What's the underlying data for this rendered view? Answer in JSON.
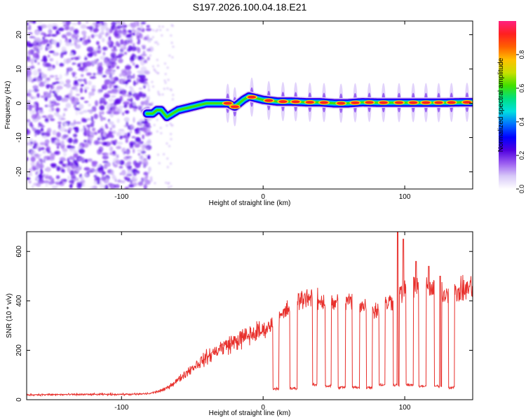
{
  "figure_title": "S197.2026.100.04.18.E21",
  "chart_data": [
    {
      "type": "heatmap",
      "id": "spectrogram",
      "xlabel": "Height of straight line (km)",
      "ylabel": "Frequency (Hz)",
      "xlim": [
        -167,
        148
      ],
      "ylim": [
        -25,
        24
      ],
      "xticks": [
        -100,
        0,
        100
      ],
      "yticks": [
        -20,
        -10,
        0,
        10,
        20
      ],
      "colorbar": {
        "label": "Normalized spectral amplitude",
        "range": [
          0.0,
          1.0
        ],
        "ticks": [
          "0.0",
          "0.2",
          "0.4",
          "0.6",
          "0.8"
        ],
        "colors": [
          "#ffffff",
          "#d8c8f8",
          "#9a5cf0",
          "#5000e0",
          "#0000ff",
          "#0070ff",
          "#00e0e0",
          "#00e080",
          "#40e000",
          "#c8e000",
          "#ffc000",
          "#ff6000",
          "#ff2020",
          "#ff2080"
        ]
      },
      "noise_region_end_km": -83,
      "ridge": {
        "x_km": [
          -82,
          -78,
          -75,
          -72,
          -68,
          -64,
          -60,
          -55,
          -50,
          -45,
          -40,
          -35,
          -30,
          -25,
          -20,
          -17,
          -14,
          -10,
          -5,
          0,
          10,
          20,
          30,
          40,
          50,
          60,
          70,
          80,
          90,
          100,
          110,
          120,
          130,
          140,
          148
        ],
        "freq_hz": [
          -3,
          -3,
          -2,
          -2,
          -4,
          -3,
          -2,
          -1.5,
          -1,
          -0.5,
          0,
          0,
          0,
          0,
          -1,
          0,
          1,
          2,
          1.5,
          1,
          0.5,
          0.5,
          0.3,
          0.3,
          0,
          0,
          0.3,
          0.2,
          0.2,
          0.2,
          0.2,
          0.2,
          0.2,
          0.3,
          0.3
        ],
        "peaks_km": [
          -25,
          -20,
          -8,
          4,
          14,
          23,
          33,
          43,
          55,
          65,
          75,
          85,
          96,
          106,
          115,
          124,
          133,
          144
        ]
      }
    },
    {
      "type": "line",
      "id": "snr",
      "xlabel": "Height of straight line (km)",
      "ylabel": "SNR (10 * v/v)",
      "xlim": [
        -167,
        148
      ],
      "ylim": [
        0,
        680
      ],
      "xticks": [
        -100,
        0,
        100
      ],
      "yticks": [
        0,
        200,
        400,
        600
      ],
      "color": "#e8302c",
      "trend": {
        "x_km": [
          -167,
          -90,
          -80,
          -70,
          -60,
          -50,
          -40,
          -30,
          -20,
          -10,
          0,
          10,
          20,
          30,
          40,
          50,
          60,
          70,
          80,
          90,
          100,
          110,
          120,
          130,
          140,
          148
        ],
        "snr": [
          20,
          22,
          25,
          40,
          80,
          130,
          170,
          210,
          235,
          260,
          280,
          320,
          380,
          420,
          400,
          390,
          400,
          380,
          360,
          400,
          440,
          460,
          440,
          430,
          440,
          460
        ]
      },
      "dips": [
        {
          "start_km": 7,
          "end_km": 11,
          "value": 45
        },
        {
          "start_km": 19,
          "end_km": 24,
          "value": 45
        },
        {
          "start_km": 35,
          "end_km": 38,
          "value": 60
        },
        {
          "start_km": 44,
          "end_km": 48,
          "value": 55
        },
        {
          "start_km": 53,
          "end_km": 58,
          "value": 50
        },
        {
          "start_km": 63,
          "end_km": 68,
          "value": 50
        },
        {
          "start_km": 73,
          "end_km": 77,
          "value": 50
        },
        {
          "start_km": 82,
          "end_km": 86,
          "value": 60
        },
        {
          "start_km": 92,
          "end_km": 96,
          "value": 60
        },
        {
          "start_km": 101,
          "end_km": 106,
          "value": 60
        },
        {
          "start_km": 110,
          "end_km": 115,
          "value": 55
        },
        {
          "start_km": 121,
          "end_km": 126,
          "value": 55
        },
        {
          "start_km": 131,
          "end_km": 135,
          "value": 50
        }
      ],
      "spikes": [
        {
          "x_km": 95,
          "value": 680
        },
        {
          "x_km": 99,
          "value": 650
        },
        {
          "x_km": 108,
          "value": 560
        },
        {
          "x_km": 117,
          "value": 540
        },
        {
          "x_km": 125,
          "value": 500
        }
      ]
    }
  ]
}
